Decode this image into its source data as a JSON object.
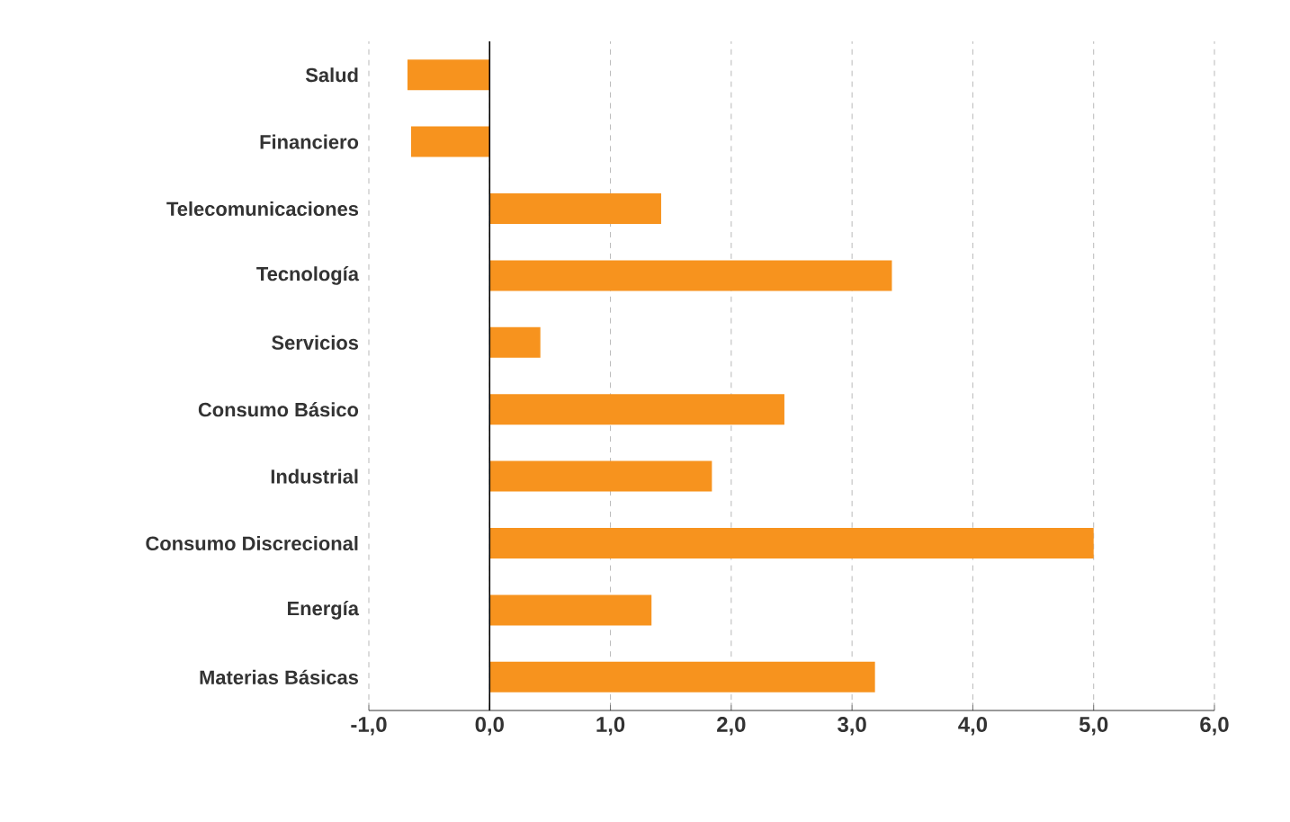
{
  "chart_data": {
    "type": "bar",
    "orientation": "horizontal",
    "categories": [
      "Salud",
      "Financiero",
      "Telecomunicaciones",
      "Tecnología",
      "Servicios",
      "Consumo Básico",
      "Industrial",
      "Consumo Discrecional",
      "Energía",
      "Materias Básicas"
    ],
    "values": [
      -0.68,
      -0.65,
      1.42,
      3.33,
      0.42,
      2.44,
      1.84,
      5.0,
      1.34,
      3.19
    ],
    "color": "#f7931e",
    "xlim": [
      -1,
      6
    ],
    "xticks": [
      {
        "value": -1,
        "label": "-1,0"
      },
      {
        "value": 0,
        "label": "0,0"
      },
      {
        "value": 1,
        "label": "1,0"
      },
      {
        "value": 2,
        "label": "2,0"
      },
      {
        "value": 3,
        "label": "3,0"
      },
      {
        "value": 4,
        "label": "4,0"
      },
      {
        "value": 5,
        "label": "5,0"
      },
      {
        "value": 6,
        "label": "6,0"
      }
    ],
    "grid": "x"
  }
}
